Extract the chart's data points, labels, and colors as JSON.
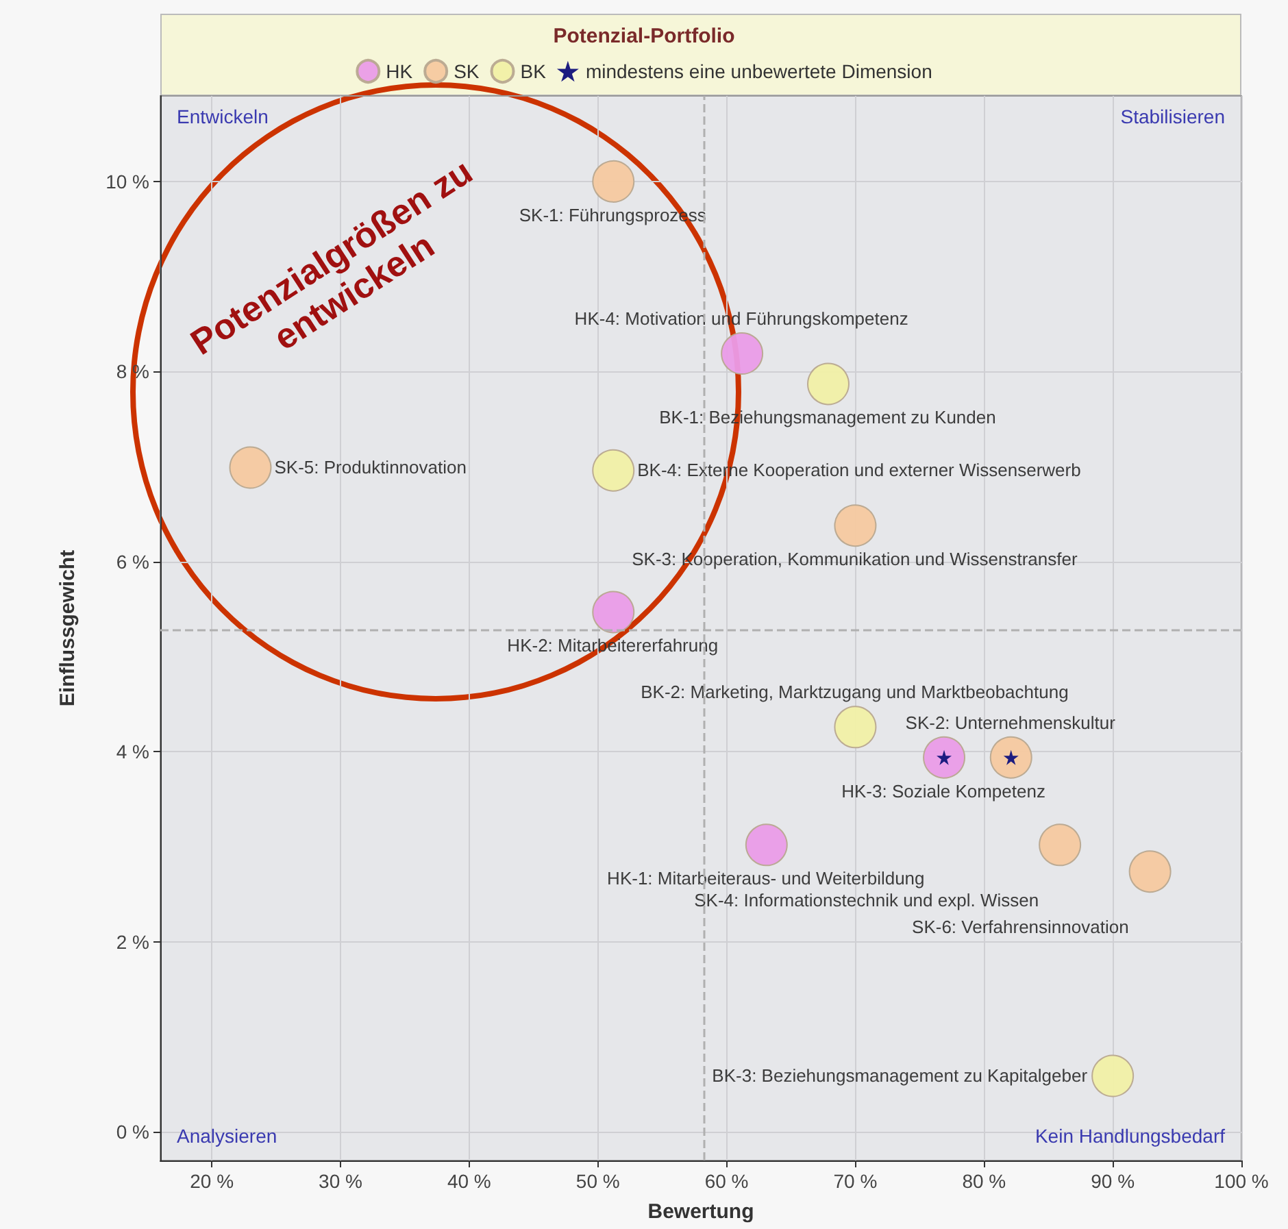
{
  "chart_data": {
    "type": "scatter",
    "title": "Potenzial-Portfolio",
    "xlabel": "Bewertung",
    "ylabel": "Einflussgewicht",
    "xlim": [
      16,
      100
    ],
    "ylim": [
      -0.3,
      10.9
    ],
    "xticks": [
      {
        "value": 20,
        "label": "20 %"
      },
      {
        "value": 30,
        "label": "30 %"
      },
      {
        "value": 40,
        "label": "40 %"
      },
      {
        "value": 50,
        "label": "50 %"
      },
      {
        "value": 60,
        "label": "60 %"
      },
      {
        "value": 70,
        "label": "70 %"
      },
      {
        "value": 80,
        "label": "80 %"
      },
      {
        "value": 90,
        "label": "90 %"
      },
      {
        "value": 100,
        "label": "100 %"
      }
    ],
    "yticks": [
      {
        "value": 0,
        "label": "0 %"
      },
      {
        "value": 2,
        "label": "2 %"
      },
      {
        "value": 4,
        "label": "4 %"
      },
      {
        "value": 6,
        "label": "6 %"
      },
      {
        "value": 8,
        "label": "8 %"
      },
      {
        "value": 10,
        "label": "10 %"
      }
    ],
    "grid": true,
    "legend": "top",
    "marker": "circle",
    "series": [
      {
        "name": "HK",
        "color": "#ea9ce8",
        "x": [
          61.2,
          51.2,
          76.9,
          63.1
        ],
        "values": [
          8.19,
          5.47,
          3.94,
          3.02
        ],
        "value_labels": [
          "HK-4: Motivation und Führungskompetenz",
          "HK-2: Mitarbeitererfahrung",
          "HK-3: Soziale Kompetenz",
          "HK-1: Mitarbeiteraus- und Weiterbildung"
        ]
      },
      {
        "name": "SK",
        "color": "#f5c9a0",
        "x": [
          51.2,
          23,
          70,
          82.1,
          85.9,
          92.9
        ],
        "values": [
          10,
          6.99,
          6.38,
          3.94,
          3.02,
          2.74
        ],
        "value_labels": [
          "SK-1: Führungsprozess",
          "SK-5: Produktinnovation",
          "SK-3: Kooperation, Kommunikation und Wissenstransfer",
          "SK-2: Unternehmenskultur",
          "SK-4: Informationstechnik und expl. Wissen",
          "SK-6: Verfahrensinnovation"
        ]
      },
      {
        "name": "BK",
        "color": "#f1f0a6",
        "x": [
          67.9,
          51.2,
          70,
          90
        ],
        "values": [
          7.87,
          6.96,
          4.26,
          0.59
        ],
        "value_labels": [
          "BK-1: Beziehungsmanagement zu Kunden",
          "BK-4: Externe Kooperation und externer Wissenserwerb",
          "BK-2: Marketing, Marktzugang und Marktbeobachtung",
          "BK-3: Beziehungsmanagement zu Kapitalgeber"
        ]
      },
      {
        "name": "mindestens eine unbewertete Dimension",
        "color": "#1c1c80",
        "marker": "star",
        "x": [
          76.9,
          82.1
        ],
        "values": [
          3.94,
          3.94
        ]
      }
    ],
    "ref_lines": [
      {
        "axis": "x",
        "value": 58.2,
        "color": "#b0b0b0",
        "line_style": "dashed"
      },
      {
        "axis": "y",
        "value": 5.28,
        "color": "#b0b0b0",
        "line_style": "dashed"
      }
    ],
    "annotations": [
      "Entwickeln",
      "Stabilisieren",
      "Analysieren",
      "Kein Handlungsbedarf",
      "Potenzialgrößen zu entwickeln"
    ]
  }
}
